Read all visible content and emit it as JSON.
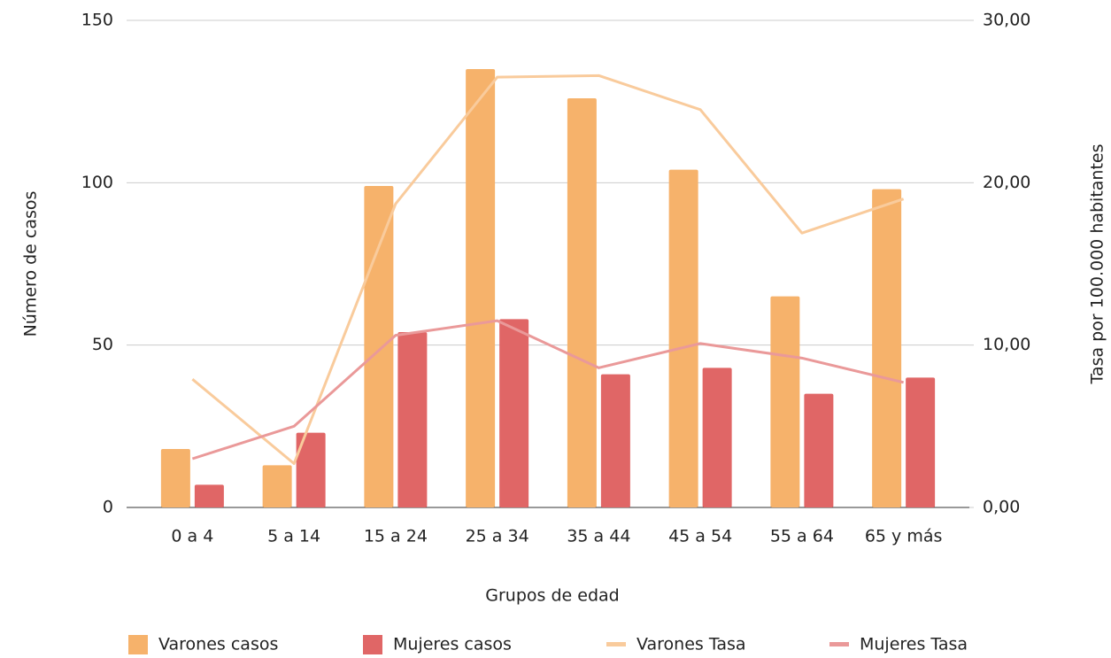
{
  "chart_data": {
    "type": "bar_line",
    "x_label": "Grupos de edad",
    "y_label": "Número de casos",
    "y2_label": "Tasa por 100.000 habitantes",
    "categories": [
      "0 a 4",
      "5 a 14",
      "15 a 24",
      "25 a 34",
      "35 a 44",
      "45 a 54",
      "55 a 64",
      "65 y más"
    ],
    "series": [
      {
        "name": "Varones casos",
        "type": "bar",
        "color": "#f6b26b",
        "values": [
          18,
          13,
          99,
          135,
          126,
          104,
          65,
          98
        ]
      },
      {
        "name": "Mujeres casos",
        "type": "bar",
        "color": "#e06666",
        "values": [
          7,
          23,
          54,
          58,
          41,
          43,
          35,
          40
        ]
      },
      {
        "name": "Varones Tasa",
        "type": "line",
        "axis": "y2",
        "color": "#f9cb9c",
        "values": [
          7.9,
          2.7,
          18.7,
          26.5,
          26.6,
          24.5,
          16.9,
          19.0
        ]
      },
      {
        "name": "Mujeres Tasa",
        "type": "line",
        "axis": "y2",
        "color": "#ea9999",
        "values": [
          3.0,
          5.0,
          10.6,
          11.5,
          8.6,
          10.1,
          9.2,
          7.7
        ]
      }
    ],
    "ylim": [
      0,
      150
    ],
    "yticks": [
      0,
      50,
      100,
      150
    ],
    "y2lim": [
      0,
      30
    ],
    "y2ticks": [
      {
        "value": 0,
        "label": "0,00"
      },
      {
        "value": 10,
        "label": "10,00"
      },
      {
        "value": 20,
        "label": "20,00"
      },
      {
        "value": 30,
        "label": "30,00"
      }
    ],
    "grid": true,
    "legend": "bottom"
  }
}
